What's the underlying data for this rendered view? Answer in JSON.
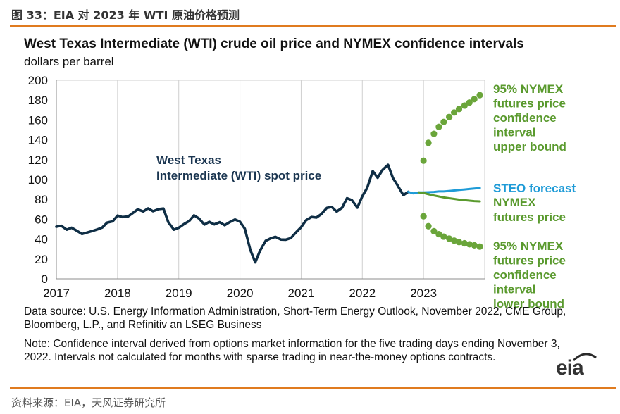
{
  "header": {
    "figure_title": "图 33：EIA 对 2023 年 WTI 原油价格预测"
  },
  "chart_data": {
    "type": "line",
    "title": "West Texas Intermediate (WTI) crude oil price and NYMEX confidence intervals",
    "subtitle": "dollars per barrel",
    "ylim": [
      0,
      200
    ],
    "xlim": [
      2017,
      2024
    ],
    "y_ticks": [
      "0",
      "20",
      "40",
      "60",
      "80",
      "100",
      "120",
      "140",
      "160",
      "180",
      "200"
    ],
    "x_ticks": [
      "2017",
      "2018",
      "2019",
      "2020",
      "2021",
      "2022",
      "2023"
    ],
    "grid": "vertical",
    "series": [
      {
        "name": "West Texas Intermediate (WTI) spot price",
        "color": "#0f2e45",
        "style": "solid",
        "x": [
          2017.0,
          2017.08,
          2017.17,
          2017.25,
          2017.33,
          2017.42,
          2017.5,
          2017.58,
          2017.67,
          2017.75,
          2017.83,
          2017.92,
          2018.0,
          2018.08,
          2018.17,
          2018.25,
          2018.33,
          2018.42,
          2018.5,
          2018.58,
          2018.67,
          2018.75,
          2018.83,
          2018.92,
          2019.0,
          2019.08,
          2019.17,
          2019.25,
          2019.33,
          2019.42,
          2019.5,
          2019.58,
          2019.67,
          2019.75,
          2019.83,
          2019.92,
          2020.0,
          2020.08,
          2020.17,
          2020.25,
          2020.33,
          2020.42,
          2020.5,
          2020.58,
          2020.67,
          2020.75,
          2020.83,
          2020.92,
          2021.0,
          2021.08,
          2021.17,
          2021.25,
          2021.33,
          2021.42,
          2021.5,
          2021.58,
          2021.67,
          2021.75,
          2021.83,
          2021.92,
          2022.0,
          2022.08,
          2022.17,
          2022.25,
          2022.33,
          2022.42,
          2022.5,
          2022.58,
          2022.67,
          2022.75
        ],
        "values": [
          52.5,
          53.5,
          49.5,
          51.5,
          48.5,
          45.2,
          46.6,
          48.0,
          49.8,
          51.6,
          56.7,
          57.9,
          63.7,
          62.2,
          62.7,
          66.3,
          70.0,
          67.9,
          71.0,
          68.1,
          70.2,
          70.8,
          57.0,
          49.5,
          51.4,
          54.9,
          58.2,
          63.9,
          60.8,
          54.7,
          57.4,
          54.8,
          57.0,
          54.0,
          57.0,
          59.8,
          57.5,
          50.5,
          29.2,
          16.6,
          28.5,
          38.3,
          40.7,
          42.3,
          39.6,
          39.4,
          41.0,
          47.0,
          52.0,
          59.0,
          62.3,
          61.7,
          65.2,
          71.4,
          72.4,
          67.7,
          71.6,
          81.2,
          79.2,
          71.7,
          83.2,
          91.6,
          108.5,
          101.8,
          109.6,
          114.8,
          101.6,
          93.7,
          84.3,
          87.6
        ]
      },
      {
        "name": "STEO forecast",
        "color": "#1e9bd7",
        "style": "solid",
        "x": [
          2022.75,
          2022.83,
          2022.92,
          2023.0,
          2023.08,
          2023.17,
          2023.25,
          2023.33,
          2023.42,
          2023.5,
          2023.58,
          2023.67,
          2023.75,
          2023.83,
          2023.92
        ],
        "values": [
          87.6,
          86.0,
          87.0,
          87.0,
          87.2,
          87.5,
          88.0,
          88.0,
          88.5,
          89.0,
          89.5,
          90.0,
          90.5,
          91.0,
          91.5
        ]
      },
      {
        "name": "NYMEX futures price",
        "color": "#5a9a2e",
        "style": "solid",
        "x": [
          2022.92,
          2023.0,
          2023.08,
          2023.17,
          2023.25,
          2023.33,
          2023.42,
          2023.5,
          2023.58,
          2023.67,
          2023.75,
          2023.83,
          2023.92
        ],
        "values": [
          87.0,
          86.5,
          85.2,
          84.0,
          83.0,
          82.0,
          81.2,
          80.5,
          79.8,
          79.2,
          78.7,
          78.3,
          78.0
        ]
      },
      {
        "name": "95% NYMEX futures price confidence interval upper bound",
        "color": "#6aa53a",
        "style": "dotted",
        "x": [
          2023.0,
          2023.08,
          2023.17,
          2023.25,
          2023.33,
          2023.42,
          2023.5,
          2023.58,
          2023.67,
          2023.75,
          2023.83,
          2023.92
        ],
        "values": [
          119.0,
          137.0,
          146.0,
          153.0,
          158.0,
          163.0,
          167.5,
          171.0,
          174.5,
          177.5,
          181.0,
          185.0
        ]
      },
      {
        "name": "95% NYMEX futures price confidence interval lower bound",
        "color": "#6aa53a",
        "style": "dotted",
        "x": [
          2023.0,
          2023.08,
          2023.17,
          2023.25,
          2023.33,
          2023.42,
          2023.5,
          2023.58,
          2023.67,
          2023.75,
          2023.83,
          2023.92
        ],
        "values": [
          63.0,
          53.0,
          48.0,
          45.0,
          42.5,
          40.5,
          38.5,
          37.0,
          35.8,
          34.8,
          33.8,
          32.5
        ]
      }
    ],
    "annotations": {
      "wti": [
        "West Texas",
        "Intermediate (WTI) spot price"
      ],
      "upper": [
        "95% NYMEX",
        "futures price",
        "confidence",
        "interval",
        "upper bound"
      ],
      "steo": [
        "STEO forecast"
      ],
      "nymex": [
        "NYMEX",
        "futures price"
      ],
      "lower": [
        "95% NYMEX",
        "futures price",
        "confidence",
        "interval",
        "lower bound"
      ]
    }
  },
  "notes": {
    "data_source": "Data source: U.S. Energy Information Administration, Short-Term Energy Outlook, November 2022, CME Group, Bloomberg, L.P., and Refinitiv an LSEG Business",
    "note": "Note: Confidence interval derived from options market information for the five trading days ending November 3, 2022. Intervals not calculated for months with sparse trading in near-the-money options contracts."
  },
  "logo": "eia",
  "source": "资料来源：EIA，天风证券研究所"
}
